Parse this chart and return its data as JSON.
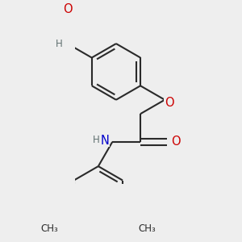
{
  "bg_color": "#f0f0eeee",
  "bond_color": "#2a2a2a",
  "bond_width": 1.5,
  "dbo": 0.055,
  "atom_colors": {
    "O": "#cc0000",
    "N": "#0000cc",
    "C": "#2a2a2a",
    "H": "#607070"
  },
  "font_size_atom": 9.5,
  "font_size_H": 8.5,
  "font_size_small": 8.5
}
